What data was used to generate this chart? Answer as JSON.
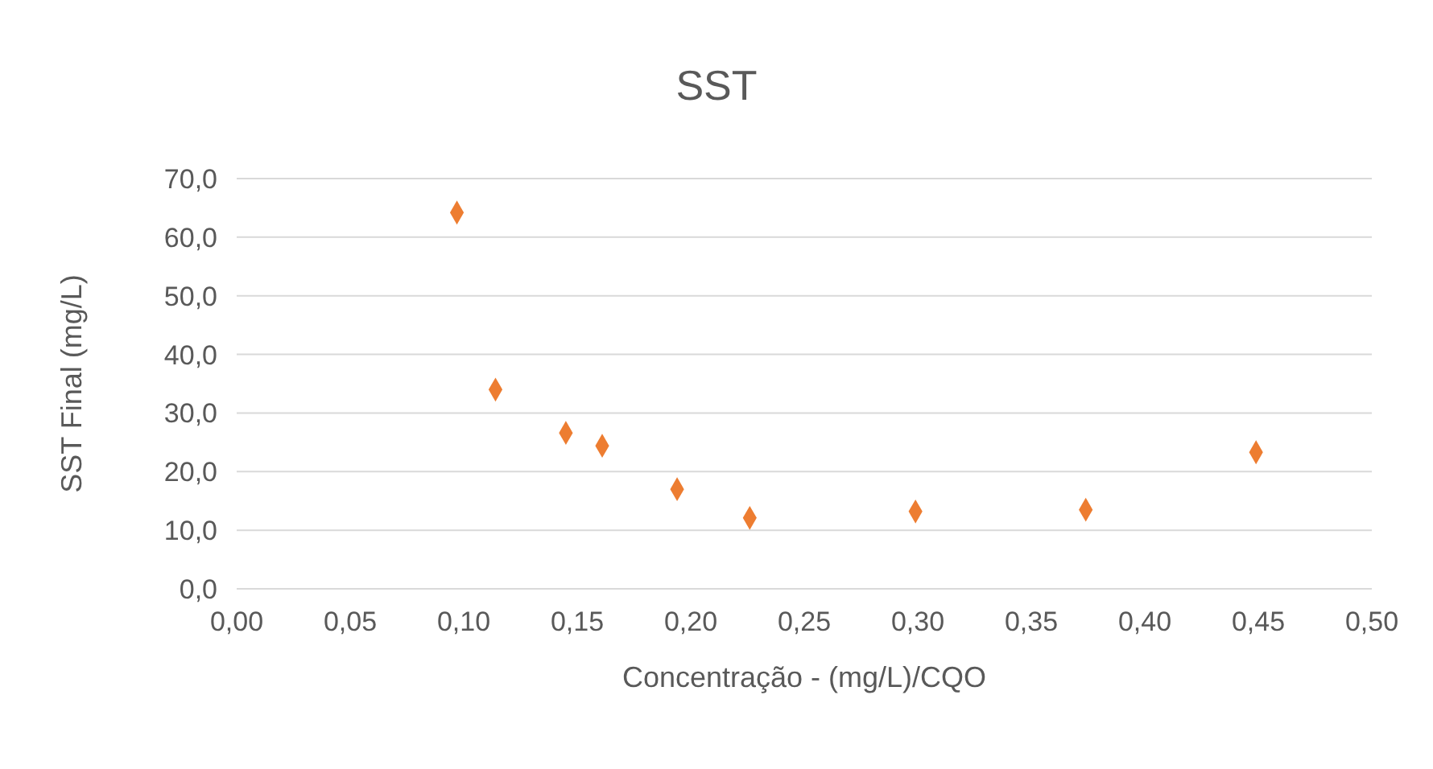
{
  "chart_data": {
    "type": "scatter",
    "title": "SST",
    "xlabel": "Concentração - (mg/L)/CQO",
    "ylabel": "SST Final (mg/L)",
    "x": [
      0.097,
      0.114,
      0.145,
      0.161,
      0.194,
      0.226,
      0.299,
      0.374,
      0.449
    ],
    "series": [
      {
        "color": "#ed7d31",
        "values": [
          64.2,
          34.0,
          26.6,
          24.4,
          17.0,
          12.1,
          13.2,
          13.5,
          23.3
        ]
      }
    ],
    "xlim": [
      0,
      0.5
    ],
    "xticks": [
      {
        "value": 0,
        "label": "0,00"
      },
      {
        "value": 0.05,
        "label": "0,05"
      },
      {
        "value": 0.1,
        "label": "0,10"
      },
      {
        "value": 0.15,
        "label": "0,15"
      },
      {
        "value": 0.2,
        "label": "0,20"
      },
      {
        "value": 0.25,
        "label": "0,25"
      },
      {
        "value": 0.3,
        "label": "0,30"
      },
      {
        "value": 0.35,
        "label": "0,35"
      },
      {
        "value": 0.4,
        "label": "0,40"
      },
      {
        "value": 0.45,
        "label": "0,45"
      },
      {
        "value": 0.5,
        "label": "0,50"
      }
    ],
    "ylim": [
      0,
      70
    ],
    "yticks": [
      {
        "value": 0,
        "label": "0,0"
      },
      {
        "value": 10,
        "label": "10,0"
      },
      {
        "value": 20,
        "label": "20,0"
      },
      {
        "value": 30,
        "label": "30,0"
      },
      {
        "value": 40,
        "label": "40,0"
      },
      {
        "value": 50,
        "label": "50,0"
      },
      {
        "value": 60,
        "label": "60,0"
      },
      {
        "value": 70,
        "label": "70,0"
      }
    ],
    "grid": "y",
    "legend": false,
    "marker": "diamond"
  }
}
